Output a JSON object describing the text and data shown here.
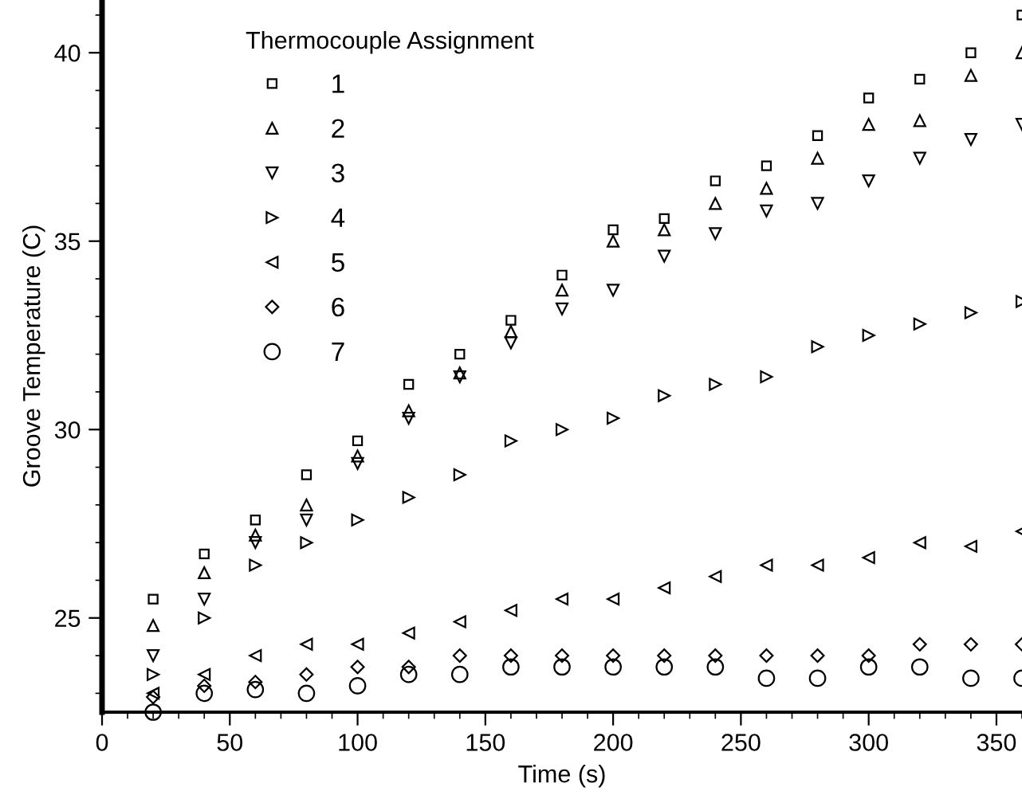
{
  "chart_data": {
    "type": "scatter",
    "xlabel": "Time (s)",
    "ylabel": "Groove Temperature (C)",
    "legend_title": "Thermocouple Assignment",
    "legend": "top left",
    "grid": false,
    "x": [
      20,
      40,
      60,
      80,
      100,
      120,
      140,
      160,
      180,
      200,
      220,
      240,
      260,
      280,
      300,
      320,
      340,
      360
    ],
    "xlim": [
      0,
      360
    ],
    "xticks": [
      0,
      50,
      100,
      150,
      200,
      250,
      300,
      350
    ],
    "ylim": [
      22.5,
      41.4
    ],
    "yticks": [
      25,
      30,
      35,
      40
    ],
    "series": [
      {
        "name": "1",
        "color": "#000000",
        "marker": "square",
        "values": [
          25.5,
          26.7,
          27.6,
          28.8,
          29.7,
          31.2,
          32.0,
          32.9,
          34.1,
          35.3,
          35.6,
          36.6,
          37.0,
          37.8,
          38.8,
          39.3,
          40.0,
          41.0
        ]
      },
      {
        "name": "2",
        "color": "#000000",
        "marker": "triangle",
        "values": [
          24.8,
          26.2,
          27.2,
          28.0,
          29.3,
          30.5,
          31.5,
          32.6,
          33.7,
          35.0,
          35.3,
          36.0,
          36.4,
          37.2,
          38.1,
          38.2,
          39.4,
          40.0
        ]
      },
      {
        "name": "3",
        "color": "#000000",
        "marker": "triangle_down",
        "values": [
          24.0,
          25.5,
          27.0,
          27.6,
          29.1,
          30.3,
          31.4,
          32.3,
          33.2,
          33.7,
          34.6,
          35.2,
          35.8,
          36.0,
          36.6,
          37.2,
          37.7,
          38.1
        ]
      },
      {
        "name": "4",
        "color": "#000000",
        "marker": "triangle_right",
        "values": [
          23.5,
          25.0,
          26.4,
          27.0,
          27.6,
          28.2,
          28.8,
          29.7,
          30.0,
          30.3,
          30.9,
          31.2,
          31.4,
          32.2,
          32.5,
          32.8,
          33.1,
          33.4
        ]
      },
      {
        "name": "5",
        "color": "#000000",
        "marker": "triangle_left",
        "values": [
          23.0,
          23.5,
          24.0,
          24.3,
          24.3,
          24.6,
          24.9,
          25.2,
          25.5,
          25.5,
          25.8,
          26.1,
          26.4,
          26.4,
          26.6,
          27.0,
          26.9,
          27.3
        ]
      },
      {
        "name": "6",
        "color": "#000000",
        "marker": "diamond",
        "values": [
          22.9,
          23.2,
          23.3,
          23.5,
          23.7,
          23.7,
          24.0,
          24.0,
          24.0,
          24.0,
          24.0,
          24.0,
          24.0,
          24.0,
          24.0,
          24.3,
          24.3,
          24.3
        ]
      },
      {
        "name": "7",
        "color": "#000000",
        "marker": "circle",
        "values": [
          22.5,
          23.0,
          23.1,
          23.0,
          23.2,
          23.5,
          23.5,
          23.7,
          23.7,
          23.7,
          23.7,
          23.7,
          23.4,
          23.4,
          23.7,
          23.7,
          23.4,
          23.4
        ]
      }
    ]
  }
}
